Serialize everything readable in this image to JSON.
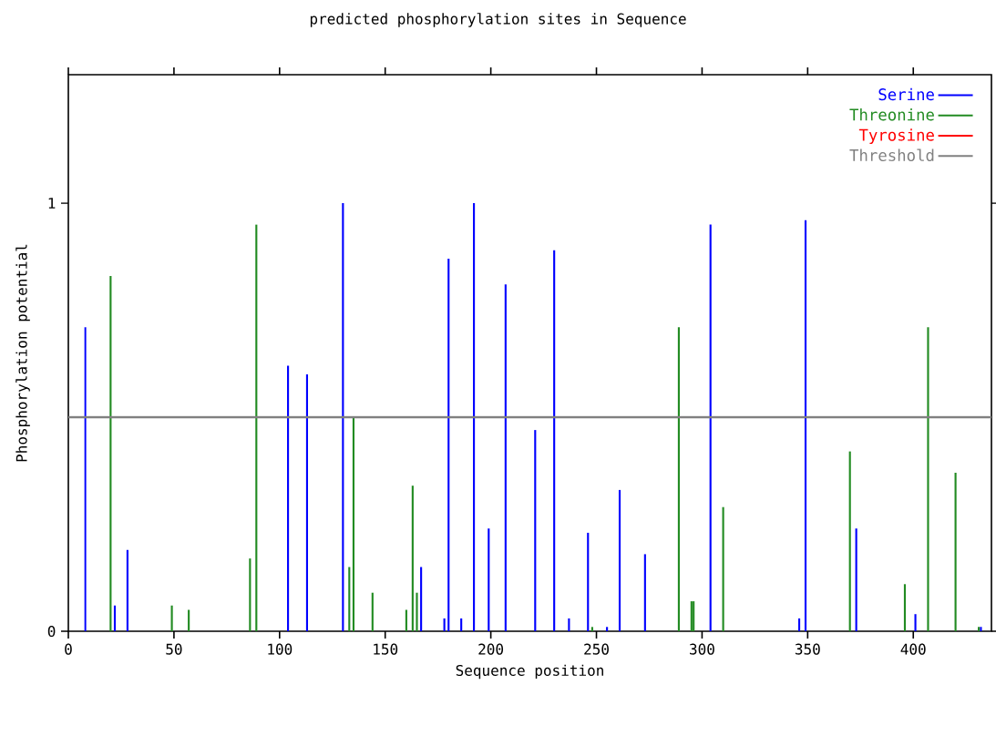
{
  "chart_data": {
    "type": "bar",
    "title": "predicted phosphorylation sites in Sequence",
    "xlabel": "Sequence position",
    "ylabel": "Phosphorylation potential",
    "xlim": [
      0,
      437
    ],
    "ylim": [
      0,
      1.3
    ],
    "xticks": [
      0,
      50,
      100,
      150,
      200,
      250,
      300,
      350,
      400
    ],
    "yticks": [
      0,
      1
    ],
    "legend": "top right",
    "grid": false,
    "series": [
      {
        "name": "Serine",
        "color": "#0000ff",
        "x": [
          8,
          22,
          28,
          104,
          113,
          130,
          167,
          178,
          180,
          186,
          192,
          199,
          207,
          221,
          230,
          237,
          246,
          255,
          261,
          273,
          304,
          346,
          349,
          373,
          401,
          432
        ],
        "values": [
          0.71,
          0.06,
          0.19,
          0.62,
          0.6,
          1.0,
          0.15,
          0.03,
          0.87,
          0.03,
          1.0,
          0.24,
          0.81,
          0.47,
          0.89,
          0.03,
          0.23,
          0.01,
          0.33,
          0.18,
          0.95,
          0.03,
          0.96,
          0.24,
          0.04,
          0.01
        ]
      },
      {
        "name": "Threonine",
        "color": "#228b22",
        "x": [
          20,
          49,
          57,
          86,
          89,
          133,
          135,
          144,
          160,
          163,
          165,
          248,
          289,
          295,
          296,
          310,
          370,
          396,
          407,
          420,
          431
        ],
        "values": [
          0.83,
          0.06,
          0.05,
          0.17,
          0.95,
          0.15,
          0.5,
          0.09,
          0.05,
          0.34,
          0.09,
          0.01,
          0.71,
          0.07,
          0.07,
          0.29,
          0.42,
          0.11,
          0.71,
          0.37,
          0.01
        ]
      },
      {
        "name": "Tyrosine",
        "color": "#ff0000"
      }
    ],
    "ref_lines": [
      {
        "axis": "y",
        "value": 0.5,
        "label": "Threshold",
        "color": "#808080"
      }
    ]
  }
}
